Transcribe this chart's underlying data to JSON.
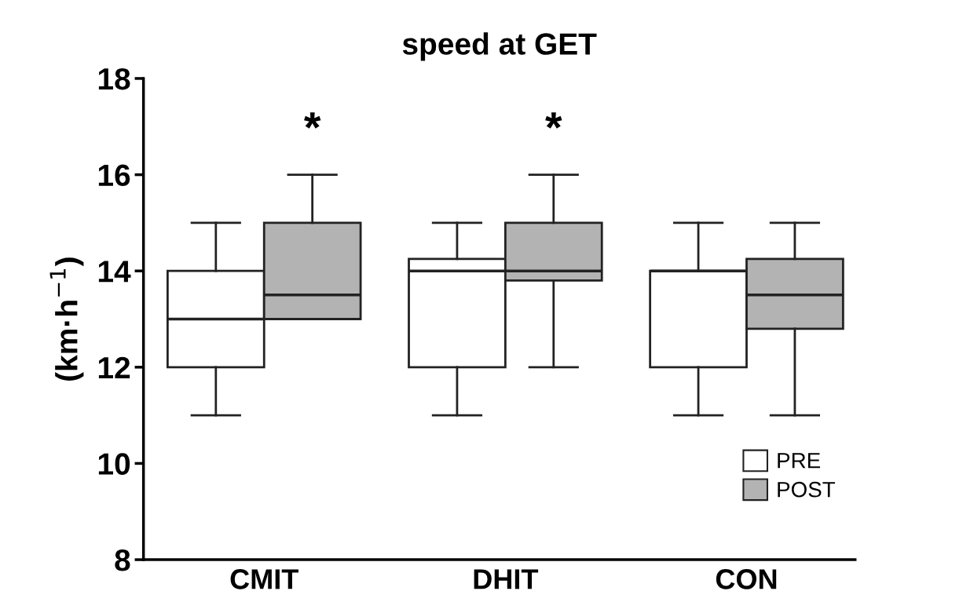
{
  "chart_data": {
    "type": "box",
    "title": "speed at GET",
    "ylabel": "(km·h$^{−1}$)",
    "categories": [
      "CMIT",
      "DHIT",
      "CON"
    ],
    "series": [
      {
        "name": "PRE",
        "color": "#ffffff",
        "boxes": [
          {
            "low": 11,
            "q1": 12,
            "median": 13,
            "q3": 14,
            "high": 15
          },
          {
            "low": 11,
            "q1": 12,
            "median": 14,
            "q3": 14.25,
            "high": 15
          },
          {
            "low": 11,
            "q1": 12,
            "median": 14,
            "q3": 14,
            "high": 15
          }
        ]
      },
      {
        "name": "POST",
        "color": "#b3b3b3",
        "boxes": [
          {
            "low": 13,
            "q1": 13,
            "median": 13.5,
            "q3": 15,
            "high": 16
          },
          {
            "low": 12,
            "q1": 13.8,
            "median": 14,
            "q3": 15,
            "high": 16
          },
          {
            "low": 11,
            "q1": 12.8,
            "median": 13.5,
            "q3": 14.25,
            "high": 15
          }
        ]
      }
    ],
    "annotations": [
      "*",
      "*"
    ],
    "ylim": [
      8,
      18
    ],
    "yticks": [
      8,
      10,
      12,
      14,
      16,
      18
    ],
    "grid": false,
    "legend": "bottom right"
  }
}
